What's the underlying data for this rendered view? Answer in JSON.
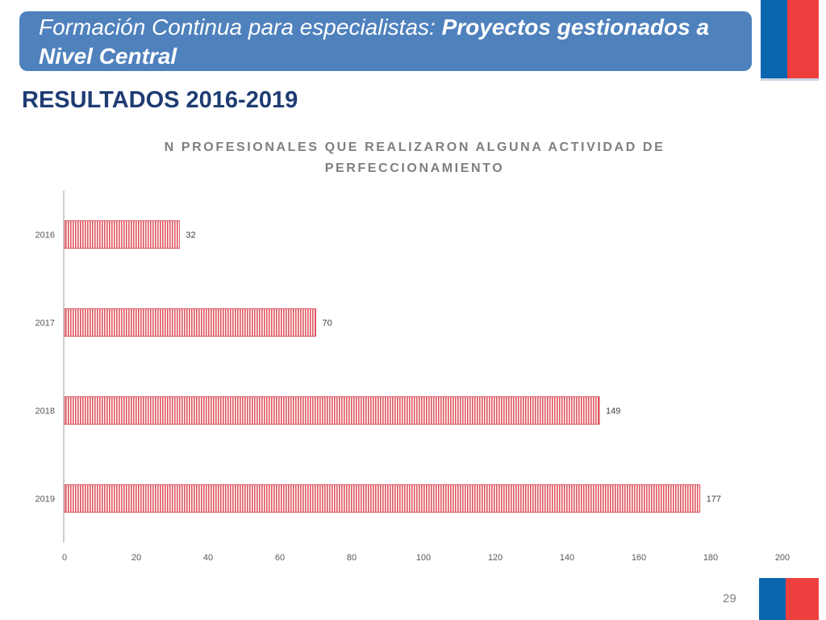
{
  "slide": {
    "title_plain": "Formación Continua para especialistas: ",
    "title_bold": "Proyectos gestionados a Nivel Central",
    "heading": "RESULTADOS 2016-2019",
    "page_number": "29"
  },
  "colors": {
    "banner": "#4f81bd",
    "heading": "#1f3c73",
    "bar": "#e0555e",
    "flag_blue": "#0b66b0",
    "flag_red": "#ee3e3e"
  },
  "chart_data": {
    "type": "bar",
    "orientation": "horizontal",
    "title": "N PROFESIONALES QUE REALIZARON ALGUNA ACTIVIDAD DE PERFECCIONAMIENTO",
    "categories": [
      "2016",
      "2017",
      "2018",
      "2019"
    ],
    "values": [
      32,
      70,
      149,
      177
    ],
    "data_labels": [
      "32",
      "70",
      "149",
      "177"
    ],
    "xlim": [
      0,
      200
    ],
    "x_ticks": [
      "0",
      "20",
      "40",
      "60",
      "80",
      "100",
      "120",
      "140",
      "160",
      "180",
      "200"
    ],
    "xlabel": "",
    "ylabel": "",
    "grid": false,
    "legend": "none",
    "bar_pattern": "vertical-stripes"
  }
}
